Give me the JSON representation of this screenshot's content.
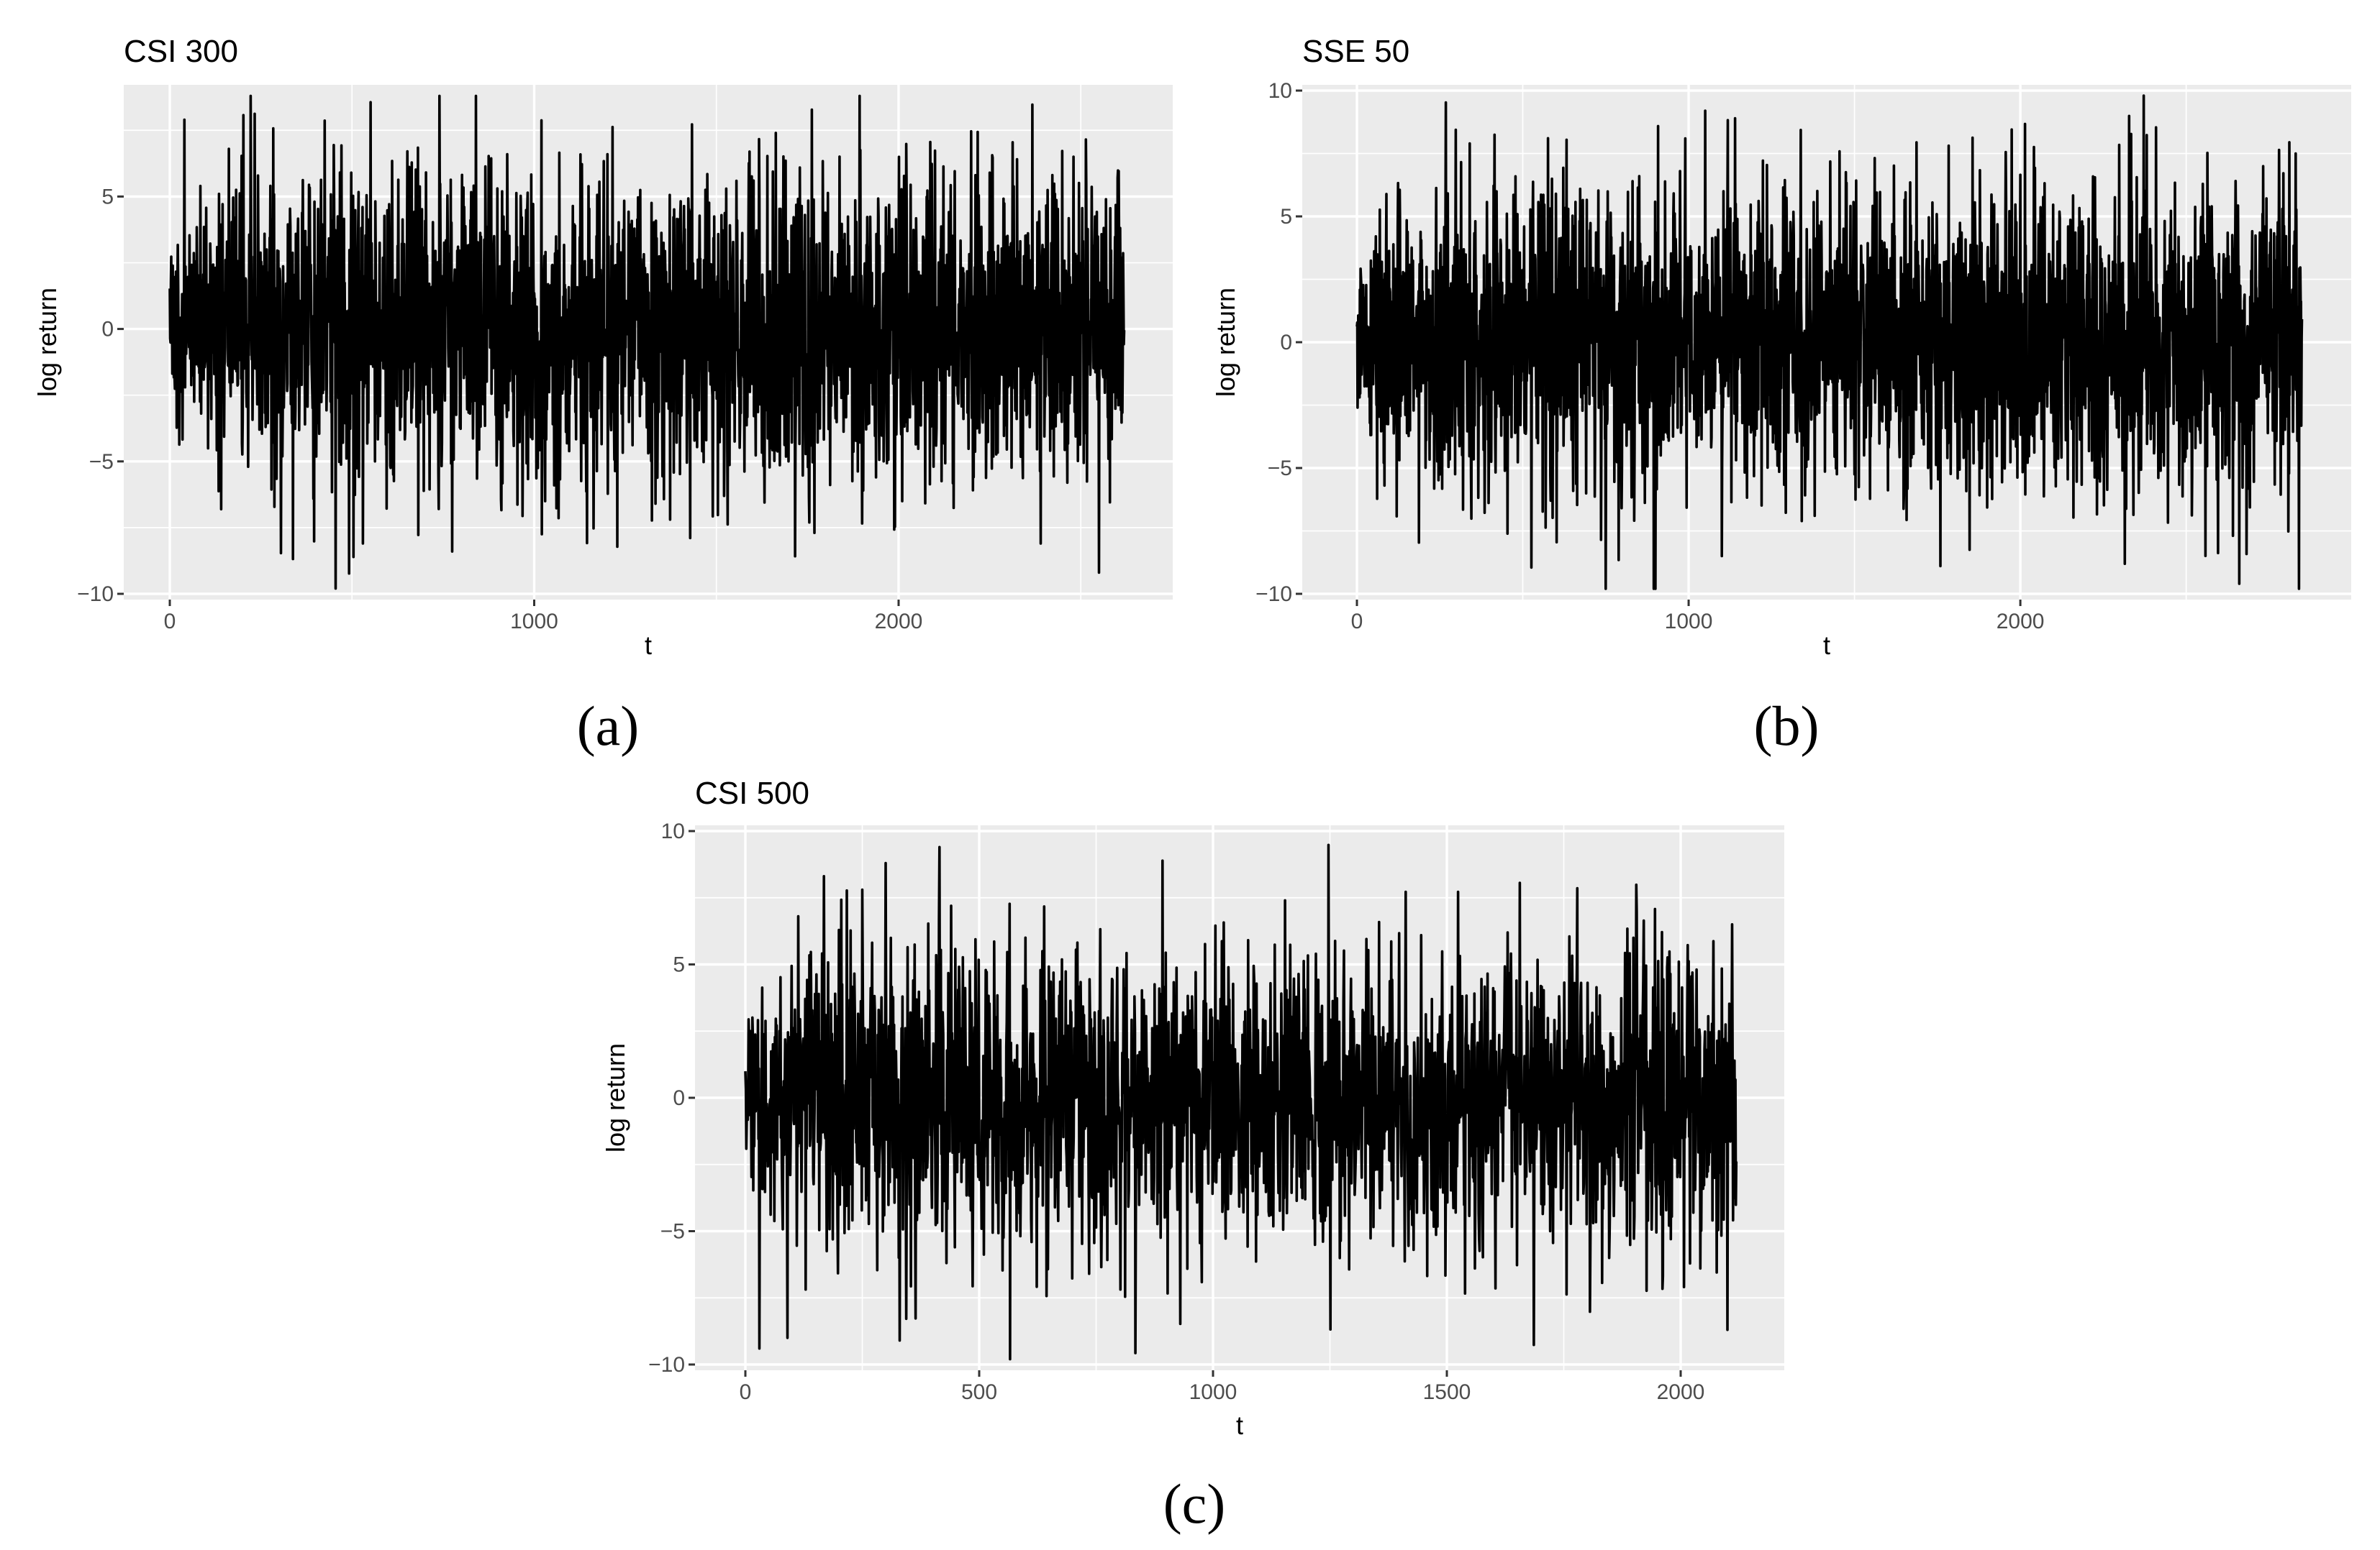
{
  "figure": {
    "captions": [
      "(a)",
      "(b)",
      "(c)"
    ]
  },
  "chart_data": [
    {
      "type": "line",
      "title": "CSI 300",
      "xlabel": "t",
      "ylabel": "log return",
      "xlim": [
        0,
        2620
      ],
      "ylim": [
        -10,
        9
      ],
      "x_ticks": [
        0,
        1000,
        2000
      ],
      "x_tick_labels": [
        "0",
        "1000",
        "2000"
      ],
      "y_ticks": [
        -10,
        -5,
        0,
        5
      ],
      "y_tick_labels": [
        "−10",
        "−5",
        "0",
        "5"
      ],
      "n_points": 2620,
      "grid": true,
      "legend": "none",
      "notable_points": [
        {
          "x": 40,
          "y": 7.9
        },
        {
          "x": 455,
          "y": -9.8
        },
        {
          "x": 530,
          "y": -8.1
        },
        {
          "x": 740,
          "y": 8.9
        },
        {
          "x": 775,
          "y": -8.4
        },
        {
          "x": 840,
          "y": 8.9
        },
        {
          "x": 1030,
          "y": -6.5
        },
        {
          "x": 2010,
          "y": -6.5
        },
        {
          "x": 2390,
          "y": -8.1
        },
        {
          "x": 2480,
          "y": 6.5
        },
        {
          "x": 2550,
          "y": -9.2
        }
      ]
    },
    {
      "type": "line",
      "title": "SSE 50",
      "xlabel": "t",
      "ylabel": "log return",
      "xlim": [
        0,
        2850
      ],
      "ylim": [
        -10,
        10
      ],
      "x_ticks": [
        0,
        1000,
        2000
      ],
      "x_tick_labels": [
        "0",
        "1000",
        "2000"
      ],
      "y_ticks": [
        -10,
        -5,
        0,
        5,
        10
      ],
      "y_tick_labels": [
        "−10",
        "−5",
        "0",
        "5",
        "10"
      ],
      "n_points": 2850,
      "grid": true,
      "legend": "none",
      "notable_points": [
        {
          "x": 340,
          "y": 7.9
        },
        {
          "x": 750,
          "y": -9.9
        },
        {
          "x": 990,
          "y": 8.1
        },
        {
          "x": 1050,
          "y": 9.2
        },
        {
          "x": 1100,
          "y": -8.5
        },
        {
          "x": 1140,
          "y": 8.9
        },
        {
          "x": 1380,
          "y": -6.9
        },
        {
          "x": 2660,
          "y": -9.6
        },
        {
          "x": 2830,
          "y": 7.5
        },
        {
          "x": 2840,
          "y": -9.8
        }
      ]
    },
    {
      "type": "line",
      "title": "CSI 500",
      "xlabel": "t",
      "ylabel": "log return",
      "xlim": [
        0,
        2120
      ],
      "ylim": [
        -10,
        10
      ],
      "x_ticks": [
        0,
        500,
        1000,
        1500,
        2000
      ],
      "x_tick_labels": [
        "0",
        "500",
        "1000",
        "1500",
        "2000"
      ],
      "y_ticks": [
        -10,
        -5,
        0,
        5,
        10
      ],
      "y_tick_labels": [
        "−10",
        "−5",
        "0",
        "5",
        "10"
      ],
      "n_points": 2120,
      "grid": true,
      "legend": "none",
      "notable_points": [
        {
          "x": 30,
          "y": -9.4
        },
        {
          "x": 90,
          "y": -9.0
        },
        {
          "x": 250,
          "y": 7.8
        },
        {
          "x": 300,
          "y": 8.8
        },
        {
          "x": 330,
          "y": -9.1
        },
        {
          "x": 415,
          "y": 9.4
        },
        {
          "x": 440,
          "y": 7.2
        },
        {
          "x": 1220,
          "y": 5.4
        },
        {
          "x": 1560,
          "y": -6.4
        },
        {
          "x": 2100,
          "y": -8.7
        },
        {
          "x": 2110,
          "y": 6.5
        }
      ]
    }
  ]
}
